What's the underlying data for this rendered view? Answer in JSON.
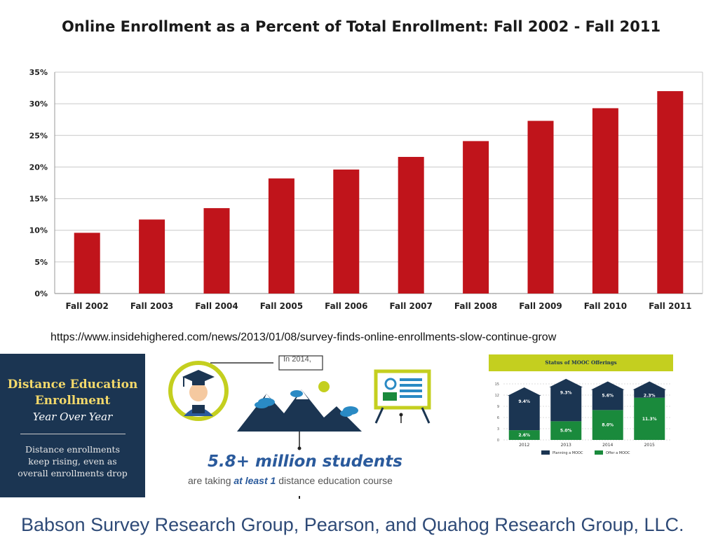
{
  "chart_data": [
    {
      "type": "bar",
      "title": "Online Enrollment as a Percent of Total Enrollment: Fall 2002 - Fall 2011",
      "categories": [
        "Fall 2002",
        "Fall 2003",
        "Fall 2004",
        "Fall 2005",
        "Fall 2006",
        "Fall 2007",
        "Fall 2008",
        "Fall 2009",
        "Fall 2010",
        "Fall 2011"
      ],
      "values": [
        9.6,
        11.7,
        13.5,
        18.2,
        19.6,
        21.6,
        24.1,
        27.3,
        29.3,
        32.0
      ],
      "yticks": [
        "0%",
        "5%",
        "10%",
        "15%",
        "20%",
        "25%",
        "30%",
        "35%"
      ],
      "ylim": [
        0,
        35
      ],
      "grid": true,
      "bar_color": "#c0141b"
    },
    {
      "type": "bar",
      "stacked": true,
      "title": "Status of MOOC Offerings",
      "categories": [
        "2012",
        "2013",
        "2014",
        "2015"
      ],
      "yticks": [
        "0",
        "3",
        "6",
        "9",
        "12",
        "15"
      ],
      "ylim": [
        0,
        15
      ],
      "series": [
        {
          "name": "Offer a MOOC",
          "color": "#1a8a3c",
          "values": [
            2.6,
            5.0,
            8.0,
            11.3
          ],
          "labels": [
            "2.6%",
            "5.0%",
            "8.0%",
            "11.3%"
          ]
        },
        {
          "name": "Planning a MOOC",
          "color": "#1b3552",
          "values": [
            9.4,
            9.3,
            5.6,
            2.3
          ],
          "labels": [
            "9.4%",
            "9.3%",
            "5.6%",
            "2.3%"
          ]
        }
      ],
      "legend_position": "bottom"
    }
  ],
  "source_url": "https://www.insidehighered.com/news/2013/01/08/survey-finds-online-enrollments-slow-continue-grow",
  "panel": {
    "title_line1": "Distance Education",
    "title_line2": "Enrollment",
    "subtitle": "Year Over Year",
    "text_line1": "Distance enrollments",
    "text_line2": "keep rising, even as",
    "text_line3": "overall enrollments drop"
  },
  "infographic": {
    "year_label": "In 2014,",
    "stat": "5.8+ million students",
    "caption_pre": "are taking",
    "caption_em": "at least 1",
    "caption_post": "distance education course"
  },
  "footer": "Babson Survey Research Group, Pearson, and Quahog Research Group, LLC."
}
